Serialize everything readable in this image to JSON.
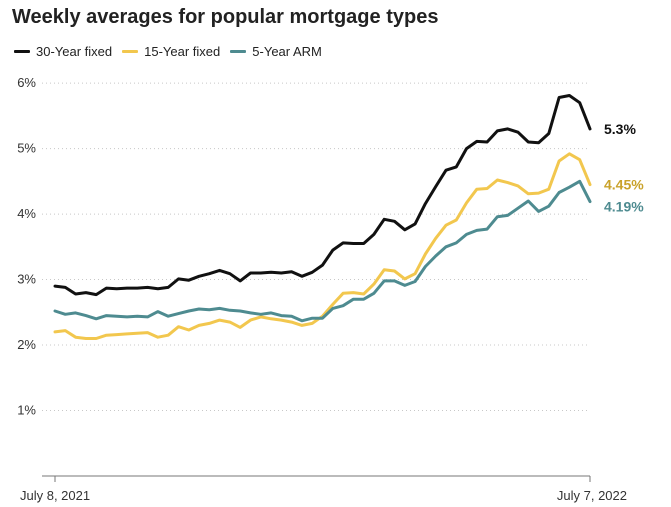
{
  "chart_data": {
    "type": "line",
    "title": "Weekly averages for popular mortgage types",
    "xlabel": "",
    "ylabel": "",
    "x_tick_labels": [
      "July 8, 2021",
      "July 7, 2022"
    ],
    "y_ticks": [
      1,
      2,
      3,
      4,
      5,
      6
    ],
    "y_tick_labels": [
      "1%",
      "2%",
      "3%",
      "4%",
      "5%",
      "6%"
    ],
    "ylim": [
      0,
      6.2
    ],
    "grid": "horizontal dotted",
    "legend_position": "top-left",
    "end_labels": true,
    "series": [
      {
        "name": "30-Year fixed",
        "color": "#111111",
        "end_label": "5.3%",
        "values": [
          2.9,
          2.88,
          2.78,
          2.8,
          2.77,
          2.87,
          2.86,
          2.87,
          2.87,
          2.88,
          2.86,
          2.88,
          3.01,
          2.99,
          3.05,
          3.09,
          3.14,
          3.09,
          2.98,
          3.1,
          3.1,
          3.11,
          3.1,
          3.12,
          3.05,
          3.11,
          3.22,
          3.45,
          3.56,
          3.55,
          3.55,
          3.69,
          3.92,
          3.89,
          3.76,
          3.85,
          4.16,
          4.42,
          4.67,
          4.72,
          5.0,
          5.11,
          5.1,
          5.27,
          5.3,
          5.25,
          5.1,
          5.09,
          5.23,
          5.78,
          5.81,
          5.7,
          5.3
        ]
      },
      {
        "name": "15-Year fixed",
        "color": "#f2c74e",
        "end_label": "4.45%",
        "values": [
          2.2,
          2.22,
          2.12,
          2.1,
          2.1,
          2.15,
          2.16,
          2.17,
          2.18,
          2.19,
          2.12,
          2.15,
          2.28,
          2.23,
          2.3,
          2.33,
          2.38,
          2.35,
          2.27,
          2.38,
          2.43,
          2.4,
          2.38,
          2.35,
          2.3,
          2.33,
          2.44,
          2.62,
          2.79,
          2.8,
          2.78,
          2.93,
          3.15,
          3.13,
          3.01,
          3.09,
          3.39,
          3.63,
          3.83,
          3.91,
          4.17,
          4.38,
          4.39,
          4.52,
          4.48,
          4.43,
          4.31,
          4.32,
          4.38,
          4.81,
          4.92,
          4.83,
          4.45
        ]
      },
      {
        "name": "5-Year ARM",
        "color": "#4e8b90",
        "end_label": "4.19%",
        "values": [
          2.52,
          2.47,
          2.49,
          2.45,
          2.4,
          2.45,
          2.44,
          2.43,
          2.44,
          2.43,
          2.51,
          2.44,
          2.48,
          2.52,
          2.55,
          2.54,
          2.56,
          2.53,
          2.52,
          2.49,
          2.47,
          2.49,
          2.45,
          2.44,
          2.37,
          2.41,
          2.41,
          2.56,
          2.6,
          2.7,
          2.7,
          2.79,
          2.98,
          2.98,
          2.91,
          2.97,
          3.2,
          3.36,
          3.5,
          3.56,
          3.69,
          3.75,
          3.77,
          3.96,
          3.98,
          4.09,
          4.2,
          4.04,
          4.12,
          4.33,
          4.41,
          4.5,
          4.19
        ]
      }
    ]
  }
}
